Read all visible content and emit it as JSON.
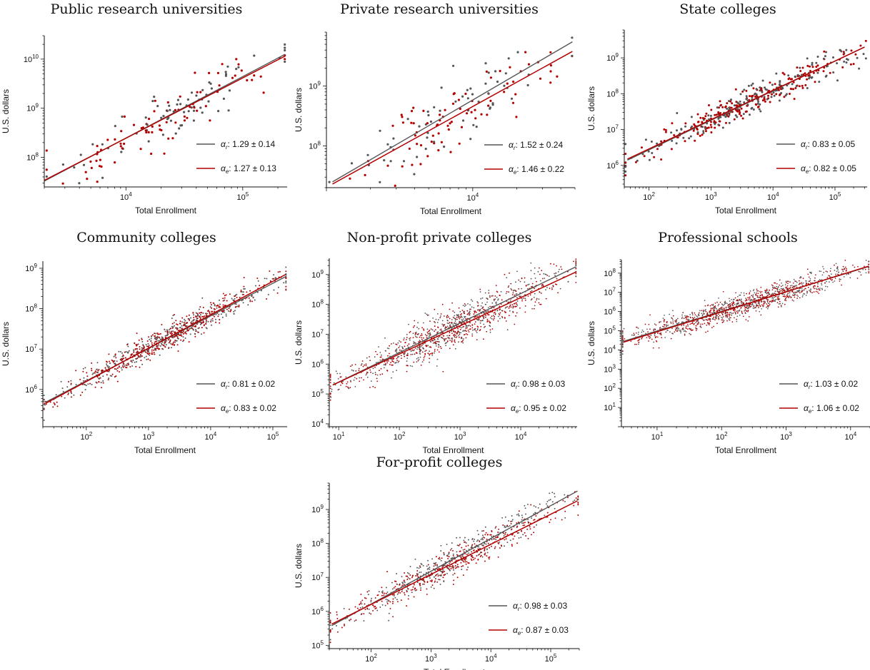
{
  "colors": {
    "r": "#555555",
    "e": "#b30000",
    "axis": "#111111"
  },
  "chart_data": [
    {
      "type": "scatter",
      "title": "Public research universities",
      "xlabel": "Total Enrollment",
      "ylabel": "U.S. dollars",
      "xscale": "log",
      "yscale": "log",
      "xlim": [
        2000,
        240000
      ],
      "ylim": [
        25000000,
        30000000000
      ],
      "xticks": [
        {
          "label": "10",
          "exp": "4"
        },
        {
          "label": "10",
          "exp": "5"
        }
      ],
      "yticks": [
        {
          "label": "10",
          "exp": "8"
        },
        {
          "label": "10",
          "exp": "9"
        },
        {
          "label": "10",
          "exp": "10"
        }
      ],
      "legend": [
        {
          "sym": "α",
          "sub": "r",
          "text": ": 1.29 ± 0.14"
        },
        {
          "sym": "α",
          "sub": "e",
          "text": ": 1.27 ± 0.13"
        }
      ],
      "legend_position": "bottom-right",
      "alpha_r": 1.29,
      "alpha_e": 1.27,
      "line_r": [
        [
          2000,
          33000000
        ],
        [
          230000,
          12500000000
        ]
      ],
      "line_e": [
        [
          2000,
          34000000
        ],
        [
          230000,
          11500000000
        ]
      ]
    },
    {
      "type": "scatter",
      "title": "Private research universities",
      "xlabel": "Total Enrollment",
      "ylabel": "U.S. dollars",
      "xscale": "log",
      "yscale": "log",
      "xlim": [
        1000,
        50000
      ],
      "ylim": [
        20000000,
        8000000000
      ],
      "xticks": [
        {
          "label": "10",
          "exp": "4"
        }
      ],
      "yticks": [
        {
          "label": "10",
          "exp": "8"
        },
        {
          "label": "10",
          "exp": "9"
        }
      ],
      "legend": [
        {
          "sym": "α",
          "sub": "r",
          "text": ": 1.52 ± 0.24"
        },
        {
          "sym": "α",
          "sub": "e",
          "text": ": 1.46 ± 0.22"
        }
      ],
      "legend_position": "bottom-right",
      "alpha_r": 1.52,
      "alpha_e": 1.46,
      "line_r": [
        [
          1100,
          25000000
        ],
        [
          48000,
          5500000000
        ]
      ],
      "line_e": [
        [
          1100,
          23000000
        ],
        [
          48000,
          3800000000
        ]
      ]
    },
    {
      "type": "scatter",
      "title": "State colleges",
      "xlabel": "Total Enrollment",
      "ylabel": "U.S. dollars",
      "xscale": "log",
      "yscale": "log",
      "xlim": [
        40,
        330000
      ],
      "ylim": [
        250000,
        6000000000
      ],
      "xticks": [
        {
          "label": "10",
          "exp": "2"
        },
        {
          "label": "10",
          "exp": "3"
        },
        {
          "label": "10",
          "exp": "4"
        },
        {
          "label": "10",
          "exp": "5"
        }
      ],
      "yticks": [
        {
          "label": "10",
          "exp": "6"
        },
        {
          "label": "10",
          "exp": "7"
        },
        {
          "label": "10",
          "exp": "8"
        },
        {
          "label": "10",
          "exp": "9"
        }
      ],
      "legend": [
        {
          "sym": "α",
          "sub": "r",
          "text": ": 0.83 ± 0.05"
        },
        {
          "sym": "α",
          "sub": "e",
          "text": ": 0.82 ± 0.05"
        }
      ],
      "legend_position": "bottom-right",
      "alpha_r": 0.83,
      "alpha_e": 0.82,
      "line_r": [
        [
          45,
          1400000
        ],
        [
          300000,
          2000000000
        ]
      ],
      "line_e": [
        [
          45,
          1500000
        ],
        [
          300000,
          2000000000
        ]
      ]
    },
    {
      "type": "scatter",
      "title": "Community colleges",
      "xlabel": "Total Enrollment",
      "ylabel": "U.S. dollars",
      "xscale": "log",
      "yscale": "log",
      "xlim": [
        20,
        170000
      ],
      "ylim": [
        120000,
        1500000000
      ],
      "xticks": [
        {
          "label": "10",
          "exp": "2"
        },
        {
          "label": "10",
          "exp": "3"
        },
        {
          "label": "10",
          "exp": "4"
        },
        {
          "label": "10",
          "exp": "5"
        }
      ],
      "yticks": [
        {
          "label": "10",
          "exp": "6"
        },
        {
          "label": "10",
          "exp": "7"
        },
        {
          "label": "10",
          "exp": "8"
        },
        {
          "label": "10",
          "exp": "9"
        }
      ],
      "legend": [
        {
          "sym": "α",
          "sub": "r",
          "text": ": 0.81 ± 0.02"
        },
        {
          "sym": "α",
          "sub": "e",
          "text": ": 0.83 ± 0.02"
        }
      ],
      "legend_position": "bottom-right",
      "alpha_r": 0.81,
      "alpha_e": 0.83,
      "line_r": [
        [
          22,
          480000
        ],
        [
          160000,
          620000000
        ]
      ],
      "line_e": [
        [
          22,
          450000
        ],
        [
          160000,
          700000000
        ]
      ]
    },
    {
      "type": "scatter",
      "title": "Non-profit private colleges",
      "xlabel": "Total Enrollment",
      "ylabel": "U.S. dollars",
      "xscale": "log",
      "yscale": "log",
      "xlim": [
        7,
        85000
      ],
      "ylim": [
        8000,
        3500000000
      ],
      "xticks": [
        {
          "label": "10",
          "exp": "1"
        },
        {
          "label": "10",
          "exp": "2"
        },
        {
          "label": "10",
          "exp": "3"
        },
        {
          "label": "10",
          "exp": "4"
        }
      ],
      "yticks": [
        {
          "label": "10",
          "exp": "4"
        },
        {
          "label": "10",
          "exp": "5"
        },
        {
          "label": "10",
          "exp": "6"
        },
        {
          "label": "10",
          "exp": "7"
        },
        {
          "label": "10",
          "exp": "8"
        },
        {
          "label": "10",
          "exp": "9"
        }
      ],
      "legend": [
        {
          "sym": "α",
          "sub": "r",
          "text": ": 0.98 ± 0.03"
        },
        {
          "sym": "α",
          "sub": "e",
          "text": ": 0.95 ± 0.02"
        }
      ],
      "legend_position": "bottom-right",
      "alpha_r": 0.98,
      "alpha_e": 0.95,
      "line_r": [
        [
          8,
          200000
        ],
        [
          80000,
          1800000000
        ]
      ],
      "line_e": [
        [
          8,
          200000
        ],
        [
          80000,
          1200000000
        ]
      ]
    },
    {
      "type": "scatter",
      "title": "Professional schools",
      "xlabel": "Total Enrollment",
      "ylabel": "U.S. dollars",
      "xscale": "log",
      "yscale": "log",
      "xlim": [
        2.8,
        20000
      ],
      "ylim": [
        1,
        500000000
      ],
      "xticks": [
        {
          "label": "10",
          "exp": "1"
        },
        {
          "label": "10",
          "exp": "2"
        },
        {
          "label": "10",
          "exp": "3"
        },
        {
          "label": "10",
          "exp": "4"
        }
      ],
      "yticks": [
        {
          "label": "10",
          "exp": "1"
        },
        {
          "label": "10",
          "exp": "2"
        },
        {
          "label": "10",
          "exp": "3"
        },
        {
          "label": "10",
          "exp": "4"
        },
        {
          "label": "10",
          "exp": "5"
        },
        {
          "label": "10",
          "exp": "6"
        },
        {
          "label": "10",
          "exp": "7"
        },
        {
          "label": "10",
          "exp": "8"
        }
      ],
      "legend": [
        {
          "sym": "α",
          "sub": "r",
          "text": ": 1.03 ± 0.02"
        },
        {
          "sym": "α",
          "sub": "e",
          "text": ": 1.06 ± 0.02"
        }
      ],
      "legend_position": "bottom-right",
      "alpha_r": 1.03,
      "alpha_e": 1.06,
      "line_r": [
        [
          3,
          28000
        ],
        [
          19000,
          220000000
        ]
      ],
      "line_e": [
        [
          3,
          25000
        ],
        [
          19000,
          230000000
        ]
      ]
    },
    {
      "type": "scatter",
      "title": "For-profit colleges",
      "xlabel": "Total Enrollment",
      "ylabel": "U.S. dollars",
      "xscale": "log",
      "yscale": "log",
      "xlim": [
        20,
        300000
      ],
      "ylim": [
        80000,
        6000000000
      ],
      "xticks": [
        {
          "label": "10",
          "exp": "2"
        },
        {
          "label": "10",
          "exp": "3"
        },
        {
          "label": "10",
          "exp": "4"
        },
        {
          "label": "10",
          "exp": "5"
        }
      ],
      "yticks": [
        {
          "label": "10",
          "exp": "5"
        },
        {
          "label": "10",
          "exp": "6"
        },
        {
          "label": "10",
          "exp": "7"
        },
        {
          "label": "10",
          "exp": "8"
        },
        {
          "label": "10",
          "exp": "9"
        }
      ],
      "legend": [
        {
          "sym": "α",
          "sub": "r",
          "text": ": 0.98 ± 0.03"
        },
        {
          "sym": "α",
          "sub": "e",
          "text": ": 0.87 ± 0.03"
        }
      ],
      "legend_position": "bottom-right",
      "alpha_r": 0.98,
      "alpha_e": 0.87,
      "line_r": [
        [
          22,
          380000
        ],
        [
          280000,
          3500000000
        ]
      ],
      "line_e": [
        [
          22,
          420000
        ],
        [
          280000,
          1800000000
        ]
      ]
    }
  ]
}
